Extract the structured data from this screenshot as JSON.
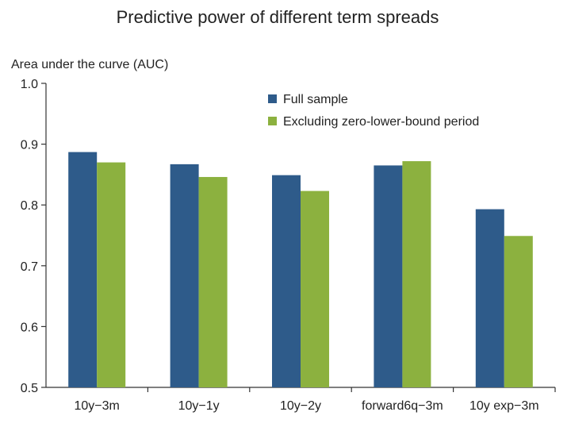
{
  "colors": {
    "full_sample": "#2e5b8a",
    "excluding_zlb": "#8cb13f",
    "axis": "#333333"
  },
  "chart_data": {
    "type": "bar",
    "title": "Predictive power of different term spreads",
    "ylabel": "Area under the curve (AUC)",
    "xlabel": "",
    "ylim": [
      0.5,
      1.0
    ],
    "yticks": [
      "0.5",
      "0.6",
      "0.7",
      "0.8",
      "0.9",
      "1.0"
    ],
    "categories": [
      "10y−3m",
      "10y−1y",
      "10y−2y",
      "forward6q−3m",
      "10y exp−3m"
    ],
    "series": [
      {
        "name": "Full sample",
        "values": [
          0.887,
          0.867,
          0.849,
          0.865,
          0.793
        ]
      },
      {
        "name": "Excluding zero-lower-bound period",
        "values": [
          0.87,
          0.846,
          0.823,
          0.872,
          0.749
        ]
      }
    ],
    "legend_position": "top-right",
    "grid": false
  }
}
